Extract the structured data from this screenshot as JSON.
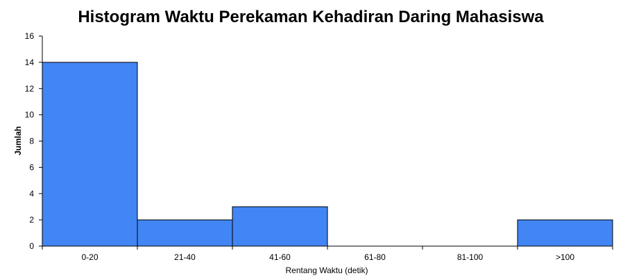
{
  "chart_data": {
    "type": "bar",
    "title": "Histogram Waktu Perekaman Kehadiran Daring Mahasiswa",
    "xlabel": "Rentang Waktu (detik)",
    "ylabel": "Jumlah",
    "categories": [
      "0-20",
      "21-40",
      "41-60",
      "61-80",
      "81-100",
      ">100"
    ],
    "values": [
      14,
      2,
      3,
      0,
      0,
      2
    ],
    "ylim": [
      0,
      16
    ],
    "yticks": [
      0,
      2,
      4,
      6,
      8,
      10,
      12,
      14,
      16
    ],
    "grid": false,
    "legend": "none",
    "bar_color": "#4285f4",
    "bar_edge_color": "#000000"
  }
}
